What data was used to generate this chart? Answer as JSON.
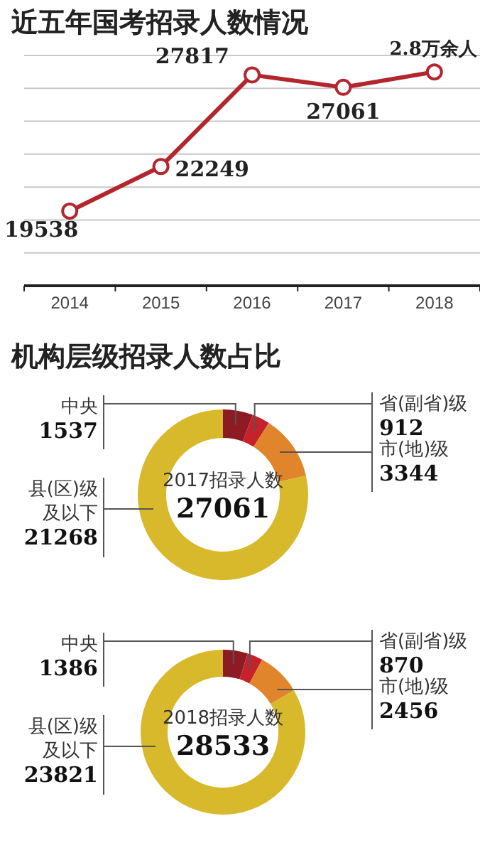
{
  "chart_data": [
    {
      "type": "line",
      "title": "近五年国考招录人数情况",
      "categories": [
        "2014",
        "2015",
        "2016",
        "2017",
        "2018"
      ],
      "series": [
        {
          "color": "#b3262d",
          "values": [
            19538,
            22249,
            27817,
            27061,
            28000
          ],
          "value_labels": [
            "19538",
            "22249",
            "27817",
            "27061",
            null
          ]
        }
      ],
      "annotations": [
        {
          "text": "2.8万余人",
          "x": "2018",
          "y": 28000
        }
      ],
      "ylim": [
        15000,
        29000
      ],
      "yticks": [
        {
          "value": 17000,
          "label": null
        },
        {
          "value": 19000,
          "label": null
        },
        {
          "value": 21000,
          "label": null
        },
        {
          "value": 23000,
          "label": null
        },
        {
          "value": 25000,
          "label": null
        },
        {
          "value": 27000,
          "label": null
        },
        {
          "value": 29000,
          "label": null
        }
      ],
      "grid": "y",
      "marker": "circle"
    },
    {
      "type": "donut",
      "title": "机构层级招录人数占比",
      "categories": [
        "中央",
        "省(副省)级",
        "市(地)级",
        "县(区)级及以下"
      ],
      "values": [
        1537,
        912,
        3344,
        21268
      ],
      "colors": [
        "#8e1b24",
        "#c5222c",
        "#e0852b",
        "#d8b92b"
      ],
      "data_labels": true,
      "annotations": [
        "2017招录人数",
        "27061"
      ]
    },
    {
      "type": "donut",
      "categories": [
        "中央",
        "省(副省)级",
        "市(地)级",
        "县(区)级及以下"
      ],
      "values": [
        1386,
        870,
        2456,
        23821
      ],
      "colors": [
        "#8e1b24",
        "#c5222c",
        "#e0852b",
        "#d8b92b"
      ],
      "data_labels": true,
      "annotations": [
        "2018招录人数",
        "28533"
      ]
    }
  ]
}
